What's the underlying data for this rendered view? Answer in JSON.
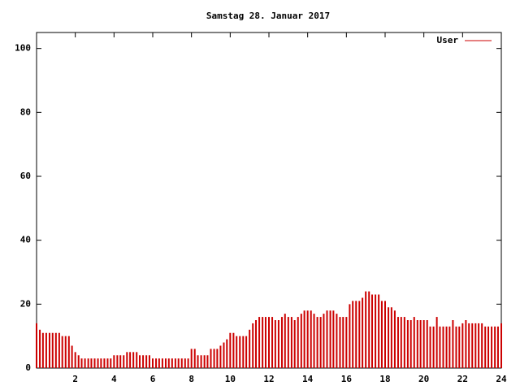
{
  "chart_data": {
    "type": "impulse",
    "title": "Samstag 28. Januar 2017",
    "x": [
      0,
      0.17,
      0.33,
      0.5,
      0.67,
      0.83,
      1,
      1.17,
      1.33,
      1.5,
      1.67,
      1.83,
      2,
      2.17,
      2.33,
      2.5,
      2.67,
      2.83,
      3,
      3.17,
      3.33,
      3.5,
      3.67,
      3.83,
      4,
      4.17,
      4.33,
      4.5,
      4.67,
      4.83,
      5,
      5.17,
      5.33,
      5.5,
      5.67,
      5.83,
      6,
      6.17,
      6.33,
      6.5,
      6.67,
      6.83,
      7,
      7.17,
      7.33,
      7.5,
      7.67,
      7.83,
      8,
      8.17,
      8.33,
      8.5,
      8.67,
      8.83,
      9,
      9.17,
      9.33,
      9.5,
      9.67,
      9.83,
      10,
      10.17,
      10.33,
      10.5,
      10.67,
      10.83,
      11,
      11.17,
      11.33,
      11.5,
      11.67,
      11.83,
      12,
      12.17,
      12.33,
      12.5,
      12.67,
      12.83,
      13,
      13.17,
      13.33,
      13.5,
      13.67,
      13.83,
      14,
      14.17,
      14.33,
      14.5,
      14.67,
      14.83,
      15,
      15.17,
      15.33,
      15.5,
      15.67,
      15.83,
      16,
      16.17,
      16.33,
      16.5,
      16.67,
      16.83,
      17,
      17.17,
      17.33,
      17.5,
      17.67,
      17.83,
      18,
      18.17,
      18.33,
      18.5,
      18.67,
      18.83,
      19,
      19.17,
      19.33,
      19.5,
      19.67,
      19.83,
      20,
      20.17,
      20.33,
      20.5,
      20.67,
      20.83,
      21,
      21.17,
      21.33,
      21.5,
      21.67,
      21.83,
      22,
      22.17,
      22.33,
      22.5,
      22.67,
      22.83,
      23,
      23.17,
      23.33,
      23.5,
      23.67,
      23.83,
      24
    ],
    "series": [
      {
        "name": "User",
        "color": "#cc0000",
        "values": [
          14,
          12,
          11,
          11,
          11,
          11,
          11,
          11,
          10,
          10,
          10,
          7,
          5,
          4,
          3,
          3,
          3,
          3,
          3,
          3,
          3,
          3,
          3,
          3,
          4,
          4,
          4,
          4,
          5,
          5,
          5,
          5,
          4,
          4,
          4,
          4,
          3,
          3,
          3,
          3,
          3,
          3,
          3,
          3,
          3,
          3,
          3,
          3,
          6,
          6,
          4,
          4,
          4,
          4,
          6,
          6,
          6,
          7,
          8,
          9,
          11,
          11,
          10,
          10,
          10,
          10,
          12,
          14,
          15,
          16,
          16,
          16,
          16,
          16,
          15,
          15,
          16,
          17,
          16,
          16,
          15,
          16,
          17,
          18,
          18,
          18,
          17,
          16,
          16,
          17,
          18,
          18,
          18,
          17,
          16,
          16,
          16,
          20,
          21,
          21,
          21,
          22,
          24,
          24,
          23,
          23,
          23,
          21,
          21,
          19,
          19,
          18,
          16,
          16,
          16,
          15,
          15,
          16,
          15,
          15,
          15,
          15,
          13,
          13,
          16,
          13,
          13,
          13,
          13,
          15,
          13,
          13,
          14,
          15,
          14,
          14,
          14,
          14,
          14,
          13,
          13,
          13,
          13,
          13,
          14
        ]
      }
    ],
    "xlim": [
      0,
      24
    ],
    "xticks": [
      2,
      4,
      6,
      8,
      10,
      12,
      14,
      16,
      18,
      20,
      22,
      24
    ],
    "ylim": [
      0,
      105
    ],
    "yticks": [
      0,
      20,
      40,
      60,
      80,
      100
    ]
  }
}
